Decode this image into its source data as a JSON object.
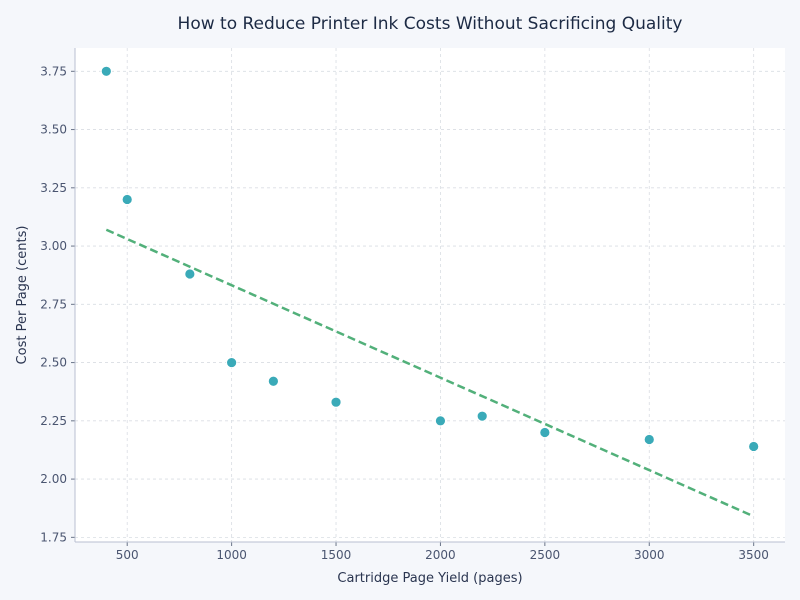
{
  "chart_data": {
    "type": "scatter",
    "title": "How to Reduce Printer Ink Costs Without Sacrificing Quality",
    "xlabel": "Cartridge Page Yield (pages)",
    "ylabel": "Cost Per Page (cents)",
    "xlim": [
      250,
      3650
    ],
    "ylim": [
      1.73,
      3.85
    ],
    "xticks": [
      500,
      1000,
      1500,
      2000,
      2500,
      3000,
      3500
    ],
    "yticks": [
      1.75,
      2.0,
      2.25,
      2.5,
      2.75,
      3.0,
      3.25,
      3.5,
      3.75
    ],
    "grid": true,
    "series": [
      {
        "color": "#3aaab8",
        "x": [
          400,
          500,
          800,
          1000,
          1200,
          1500,
          2000,
          2200,
          2500,
          3000,
          3500
        ],
        "y": [
          3.75,
          3.2,
          2.88,
          2.5,
          2.42,
          2.33,
          2.25,
          2.27,
          2.2,
          2.17,
          2.14
        ]
      }
    ],
    "trendline": {
      "color": "#52b07a",
      "x": [
        400,
        3500
      ],
      "y": [
        3.07,
        1.84
      ]
    }
  }
}
